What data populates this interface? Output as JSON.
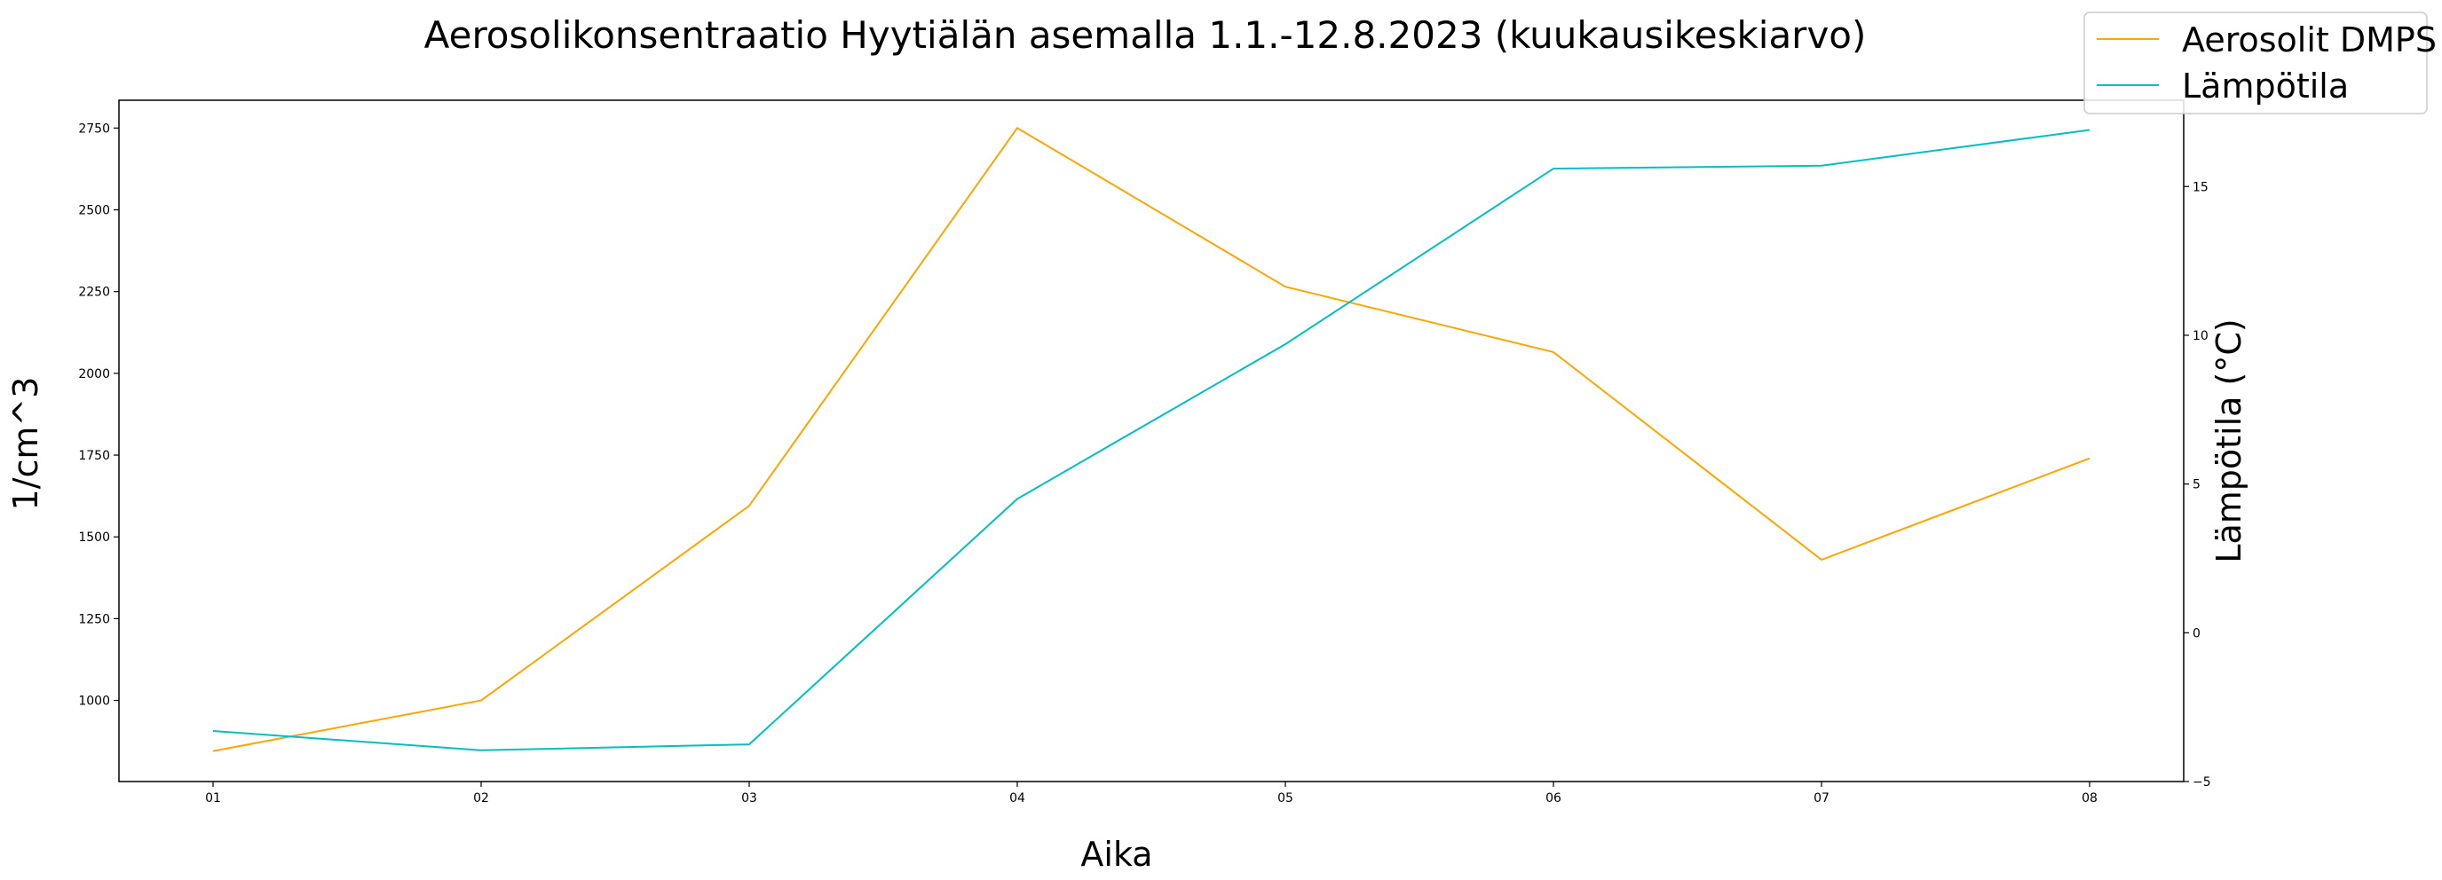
{
  "chart_data": {
    "type": "line",
    "title": "Aerosolikonsentraatio Hyytiälän asemalla 1.1.-12.8.2023 (kuukausikeskiarvo)",
    "xlabel": "Aika",
    "ylabel_left": "1/cm^3",
    "ylabel_right": "Lämpötila (°C)",
    "categories": [
      "01",
      "02",
      "03",
      "04",
      "05",
      "06",
      "07",
      "08"
    ],
    "ylim_left": [
      752,
      2835
    ],
    "ylim_right": [
      -5,
      17.9
    ],
    "yticks_left": [
      1000,
      1250,
      1500,
      1750,
      2000,
      2250,
      2500,
      2750
    ],
    "yticks_right": [
      -5,
      0,
      5,
      10,
      15
    ],
    "legend_position": "top-right",
    "series": [
      {
        "name": "Aerosolit DMPS",
        "axis": "left",
        "color": "#FFA500",
        "values": [
          845,
          1000,
          1595,
          2750,
          2265,
          2065,
          1430,
          1740
        ]
      },
      {
        "name": "Lämpötila",
        "axis": "right",
        "color": "#00BFC4",
        "values": [
          -3.3,
          -3.95,
          -3.75,
          4.5,
          9.7,
          15.6,
          15.7,
          16.9
        ]
      }
    ]
  }
}
